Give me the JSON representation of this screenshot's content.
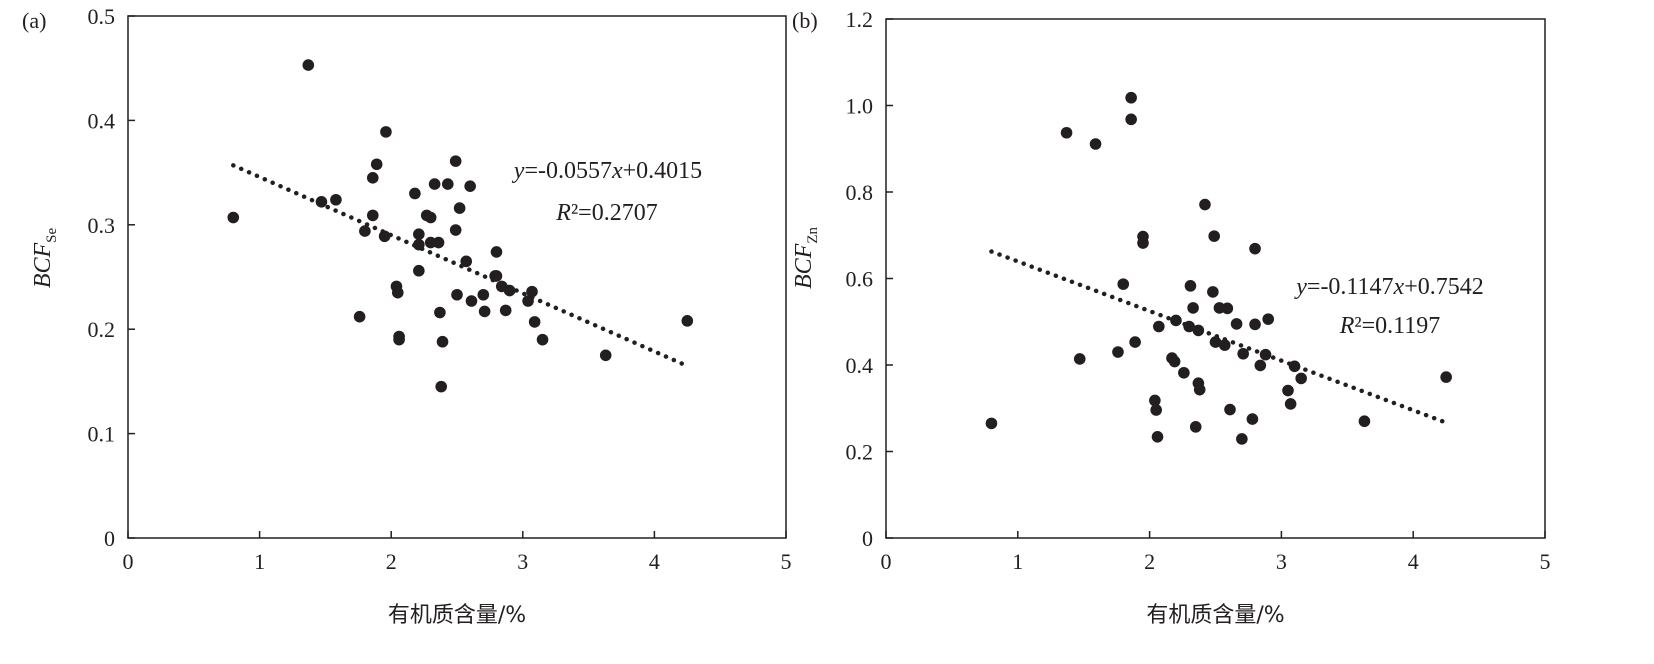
{
  "chart_data": [
    {
      "type": "scatter",
      "panel_label": "(a)",
      "xlabel": "有机质含量/%",
      "ylabel_main": "BCF",
      "ylabel_sub": "Se",
      "xlim": [
        0,
        5
      ],
      "ylim": [
        0,
        0.5
      ],
      "xticks": [
        "0",
        "1",
        "2",
        "3",
        "4",
        "5"
      ],
      "yticks": [
        "0",
        "0.1",
        "0.2",
        "0.3",
        "0.4",
        "0.5"
      ],
      "equation": "y=-0.0557x+0.4015",
      "r_squared": "R²=0.2707",
      "trendline": {
        "slope": -0.0557,
        "intercept": 0.4015,
        "x_range": [
          0.8,
          4.25
        ]
      },
      "points": [
        [
          0.8,
          0.307
        ],
        [
          1.37,
          0.453
        ],
        [
          1.47,
          0.322
        ],
        [
          1.58,
          0.324
        ],
        [
          1.76,
          0.212
        ],
        [
          1.8,
          0.294
        ],
        [
          1.86,
          0.345
        ],
        [
          1.86,
          0.309
        ],
        [
          1.89,
          0.358
        ],
        [
          1.95,
          0.289
        ],
        [
          1.96,
          0.389
        ],
        [
          2.04,
          0.241
        ],
        [
          2.05,
          0.235
        ],
        [
          2.06,
          0.193
        ],
        [
          2.06,
          0.19
        ],
        [
          2.18,
          0.33
        ],
        [
          2.21,
          0.291
        ],
        [
          2.21,
          0.281
        ],
        [
          2.21,
          0.256
        ],
        [
          2.27,
          0.309
        ],
        [
          2.3,
          0.307
        ],
        [
          2.3,
          0.283
        ],
        [
          2.33,
          0.339
        ],
        [
          2.36,
          0.283
        ],
        [
          2.37,
          0.216
        ],
        [
          2.38,
          0.145
        ],
        [
          2.39,
          0.188
        ],
        [
          2.43,
          0.339
        ],
        [
          2.49,
          0.361
        ],
        [
          2.49,
          0.295
        ],
        [
          2.5,
          0.233
        ],
        [
          2.52,
          0.316
        ],
        [
          2.57,
          0.265
        ],
        [
          2.6,
          0.337
        ],
        [
          2.61,
          0.227
        ],
        [
          2.7,
          0.233
        ],
        [
          2.71,
          0.217
        ],
        [
          2.79,
          0.251
        ],
        [
          2.8,
          0.274
        ],
        [
          2.8,
          0.251
        ],
        [
          2.84,
          0.241
        ],
        [
          2.87,
          0.218
        ],
        [
          2.9,
          0.237
        ],
        [
          3.04,
          0.227
        ],
        [
          3.07,
          0.236
        ],
        [
          3.09,
          0.207
        ],
        [
          3.15,
          0.19
        ],
        [
          3.63,
          0.175
        ],
        [
          4.25,
          0.208
        ]
      ]
    },
    {
      "type": "scatter",
      "panel_label": "(b)",
      "xlabel": "有机质含量/%",
      "ylabel_main": "BCF",
      "ylabel_sub": "Zn",
      "xlim": [
        0,
        5
      ],
      "ylim": [
        0,
        1.2
      ],
      "xticks": [
        "0",
        "1",
        "2",
        "3",
        "4",
        "5"
      ],
      "yticks": [
        "0",
        "0.2",
        "0.4",
        "0.6",
        "0.8",
        "1.0",
        "1.2"
      ],
      "equation": "y=-0.1147x+0.7542",
      "r_squared": "R²=0.1197",
      "trendline": {
        "slope": -0.1147,
        "intercept": 0.7542,
        "x_range": [
          0.8,
          4.25
        ]
      },
      "points": [
        [
          0.8,
          0.265
        ],
        [
          1.37,
          0.937
        ],
        [
          1.47,
          0.414
        ],
        [
          1.59,
          0.911
        ],
        [
          1.76,
          0.43
        ],
        [
          1.8,
          0.587
        ],
        [
          1.86,
          1.018
        ],
        [
          1.86,
          0.968
        ],
        [
          1.89,
          0.453
        ],
        [
          1.95,
          0.697
        ],
        [
          1.95,
          0.682
        ],
        [
          2.04,
          0.318
        ],
        [
          2.05,
          0.296
        ],
        [
          2.06,
          0.234
        ],
        [
          2.07,
          0.489
        ],
        [
          2.17,
          0.416
        ],
        [
          2.19,
          0.408
        ],
        [
          2.2,
          0.503
        ],
        [
          2.26,
          0.382
        ],
        [
          2.3,
          0.489
        ],
        [
          2.31,
          0.583
        ],
        [
          2.33,
          0.532
        ],
        [
          2.35,
          0.257
        ],
        [
          2.37,
          0.48
        ],
        [
          2.37,
          0.358
        ],
        [
          2.38,
          0.343
        ],
        [
          2.42,
          0.771
        ],
        [
          2.48,
          0.569
        ],
        [
          2.49,
          0.698
        ],
        [
          2.5,
          0.453
        ],
        [
          2.53,
          0.532
        ],
        [
          2.57,
          0.446
        ],
        [
          2.59,
          0.531
        ],
        [
          2.61,
          0.297
        ],
        [
          2.66,
          0.495
        ],
        [
          2.7,
          0.229
        ],
        [
          2.71,
          0.426
        ],
        [
          2.78,
          0.275
        ],
        [
          2.8,
          0.669
        ],
        [
          2.8,
          0.494
        ],
        [
          2.84,
          0.399
        ],
        [
          2.88,
          0.424
        ],
        [
          2.9,
          0.506
        ],
        [
          3.05,
          0.341
        ],
        [
          3.07,
          0.31
        ],
        [
          3.1,
          0.397
        ],
        [
          3.15,
          0.369
        ],
        [
          3.63,
          0.27
        ],
        [
          4.25,
          0.372
        ]
      ]
    }
  ]
}
